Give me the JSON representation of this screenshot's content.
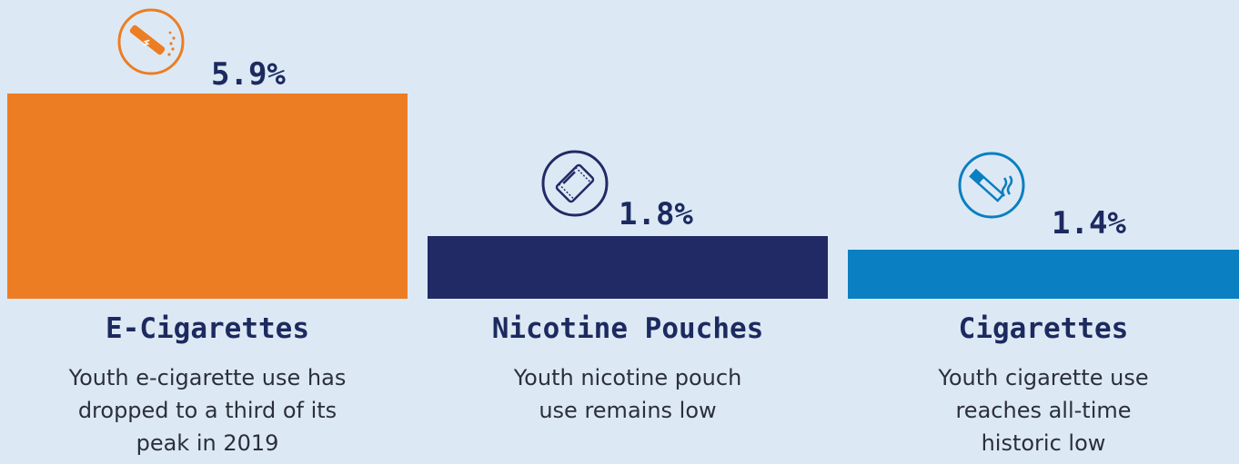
{
  "chart_data": {
    "type": "bar",
    "categories": [
      "E-Cigarettes",
      "Nicotine Pouches",
      "Cigarettes"
    ],
    "values": [
      5.9,
      1.8,
      1.4
    ],
    "value_labels": [
      "5.9%",
      "1.8%",
      "1.4%"
    ],
    "descriptions": [
      [
        "Youth e-cigarette use has",
        "dropped to a third of its",
        "peak in 2019"
      ],
      [
        "Youth nicotine pouch",
        "use remains low"
      ],
      [
        "Youth cigarette use",
        "reaches all-time",
        "historic low"
      ]
    ],
    "icons": [
      "e-cigarette-icon",
      "nicotine-pouch-icon",
      "cigarette-icon"
    ],
    "colors": [
      "#ed7d23",
      "#212a65",
      "#0a7fc1"
    ],
    "title": "",
    "xlabel": "",
    "ylabel": "",
    "grid": false
  }
}
